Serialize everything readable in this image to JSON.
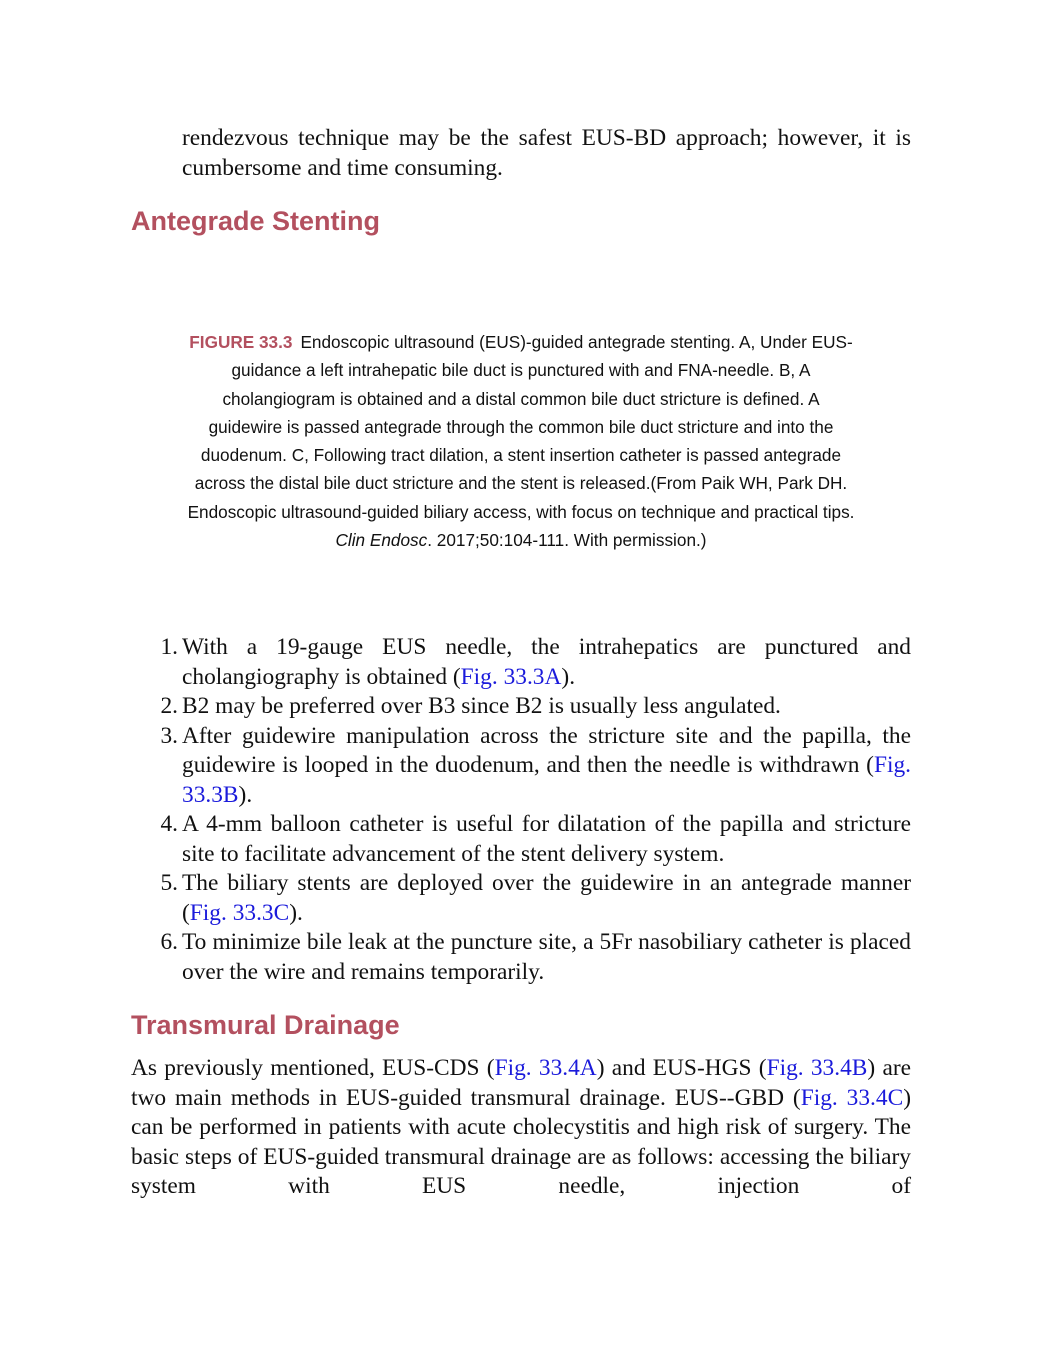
{
  "intro": {
    "runs": [
      {
        "text": "rendezvous technique may be the safest EUS-BD approach; however, it is cumbersome and time consuming."
      }
    ]
  },
  "heading_1": "Antegrade Stenting",
  "figure_caption": {
    "label": "FIGURE 33.3",
    "runs": [
      {
        "text": "Endoscopic ultrasound (EUS)-guided antegrade stenting. A, Under EUS-guidance a left intrahepatic bile duct is punctured with and FNA-needle. B, A cholangiogram is obtained and a distal common bile duct stricture is defined. A guidewire is passed antegrade through the common bile duct stricture and into the duodenum. C, Following tract dilation, a stent insertion catheter is passed antegrade across the distal bile duct stricture and the stent is released.(From Paik WH, Park DH. Endoscopic ultrasound-guided biliary access, with focus on technique and practical tips. "
      },
      {
        "italic": "Clin Endosc"
      },
      {
        "text": ". 2017;50:104-111. With permission.)"
      }
    ]
  },
  "steps": [
    {
      "number": "1.",
      "runs": [
        {
          "text": "With a 19-gauge EUS needle, the intrahepatics are punctured and cholangiography is obtained ("
        },
        {
          "link": "Fig. 33.3A"
        },
        {
          "text": ")."
        }
      ]
    },
    {
      "number": "2.",
      "runs": [
        {
          "text": "B2 may be preferred over B3 since B2 is usually less angulated."
        }
      ]
    },
    {
      "number": "3.",
      "runs": [
        {
          "text": "After guidewire manipulation across the stricture site and the papilla, the guidewire is looped in the duodenum, and then the needle is withdrawn ("
        },
        {
          "link": "Fig. 33.3B"
        },
        {
          "text": ")."
        }
      ]
    },
    {
      "number": "4.",
      "runs": [
        {
          "text": "A 4-mm balloon catheter is useful for dilatation of the papilla and stricture site to facilitate advancement of the stent delivery system."
        }
      ]
    },
    {
      "number": "5.",
      "runs": [
        {
          "text": "The biliary stents are deployed over the guidewire in an antegrade manner ("
        },
        {
          "link": "Fig. 33.3C"
        },
        {
          "text": ")."
        }
      ]
    },
    {
      "number": "6.",
      "runs": [
        {
          "text": "To minimize bile leak at the puncture site, a 5Fr nasobiliary catheter is placed over the wire and remains temporarily."
        }
      ]
    }
  ],
  "heading_2": "Transmural Drainage",
  "paragraph": {
    "runs": [
      {
        "text": "As previously mentioned, EUS-CDS ("
      },
      {
        "link": "Fig. 33.4A"
      },
      {
        "text": ") and EUS-HGS ("
      },
      {
        "link": "Fig. 33.4B"
      },
      {
        "text": ") are two main methods in EUS-guided transmural drainage. EUS--GBD ("
      },
      {
        "link": "Fig. 33.4C"
      },
      {
        "text": ") can be performed in patients with acute cholecystitis and high risk of surgery. The basic steps of EUS-guided transmural drainage are as follows: accessing the biliary system with EUS needle, injection of"
      }
    ]
  }
}
